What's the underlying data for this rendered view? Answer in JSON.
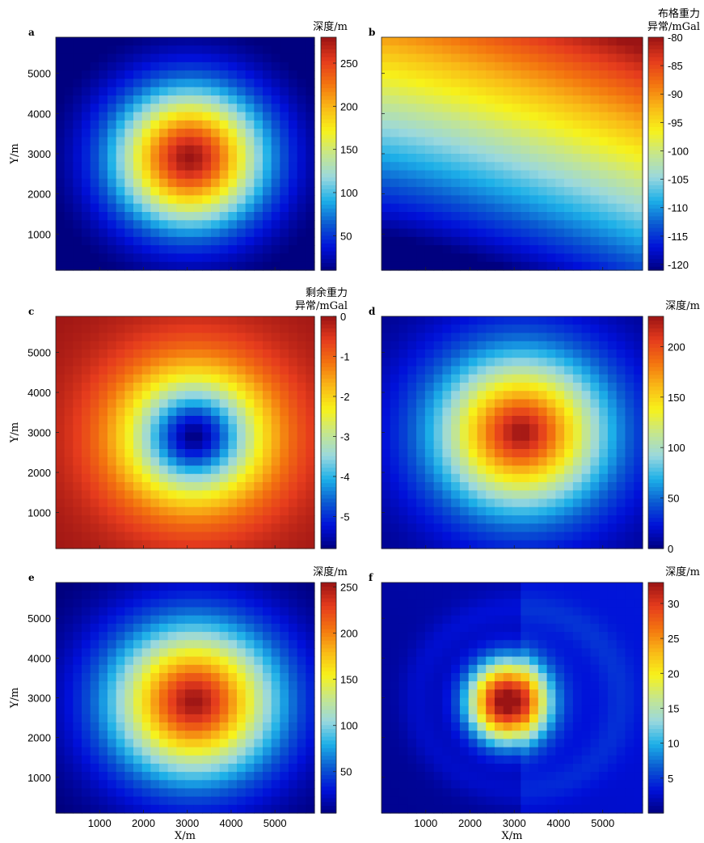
{
  "chart_data": [
    {
      "panel": "a",
      "type": "heatmap",
      "field": {
        "kind": "radial",
        "cx": 3050,
        "cy": 2900,
        "max": 280,
        "falloff": 2600,
        "shape": 1.8,
        "offset": 10
      },
      "xlim": [
        0,
        5900
      ],
      "ylim": [
        100,
        5900
      ],
      "x_ticks": [],
      "y_ticks": [
        1000,
        2000,
        3000,
        4000,
        5000
      ],
      "xlabel": "",
      "ylabel": "Y/m",
      "colorbar": {
        "title": [
          "深度/m"
        ],
        "min": 10,
        "max": 280,
        "ticks": [
          50,
          100,
          150,
          200,
          250
        ]
      }
    },
    {
      "panel": "b",
      "type": "heatmap",
      "field": {
        "kind": "curved_gradient",
        "top": -80,
        "bottom": -121
      },
      "xlim": [
        0,
        5900
      ],
      "ylim": [
        100,
        5900
      ],
      "x_ticks": [],
      "y_ticks": [],
      "xlabel": "",
      "ylabel": "",
      "colorbar": {
        "title": [
          "布格重力",
          "异常/mGal"
        ],
        "min": -121,
        "max": -80,
        "ticks": [
          -120,
          -115,
          -110,
          -105,
          -100,
          -95,
          -90,
          -85,
          -80
        ]
      }
    },
    {
      "panel": "c",
      "type": "heatmap",
      "field": {
        "kind": "radial_inverse",
        "cx": 3150,
        "cy": 2900,
        "min": -5.8,
        "max": 0,
        "falloff": 3300,
        "shape": 1.6
      },
      "xlim": [
        0,
        5900
      ],
      "ylim": [
        100,
        5900
      ],
      "x_ticks": [],
      "y_ticks": [
        1000,
        2000,
        3000,
        4000,
        5000
      ],
      "xlabel": "",
      "ylabel": "Y/m",
      "colorbar": {
        "title": [
          "剩余重力",
          "异常/mGal"
        ],
        "min": -5.8,
        "max": 0,
        "ticks": [
          -5,
          -4,
          -3,
          -2,
          -1,
          0
        ]
      }
    },
    {
      "panel": "d",
      "type": "heatmap",
      "field": {
        "kind": "radial",
        "cx": 3150,
        "cy": 3000,
        "max": 230,
        "falloff": 3000,
        "shape": 1.6,
        "offset": 0
      },
      "xlim": [
        0,
        5900
      ],
      "ylim": [
        100,
        5900
      ],
      "x_ticks": [],
      "y_ticks": [],
      "xlabel": "",
      "ylabel": "",
      "colorbar": {
        "title": [
          "深度/m"
        ],
        "min": 0,
        "max": 230,
        "ticks": [
          0,
          50,
          100,
          150,
          200
        ]
      }
    },
    {
      "panel": "e",
      "type": "heatmap",
      "field": {
        "kind": "radial",
        "cx": 3150,
        "cy": 2900,
        "max": 255,
        "falloff": 2900,
        "shape": 1.7,
        "offset": 5
      },
      "xlim": [
        0,
        5900
      ],
      "ylim": [
        100,
        5900
      ],
      "x_ticks": [
        1000,
        2000,
        3000,
        4000,
        5000
      ],
      "y_ticks": [
        1000,
        2000,
        3000,
        4000,
        5000
      ],
      "xlabel": "X/m",
      "ylabel": "Y/m",
      "colorbar": {
        "title": [
          "深度/m"
        ],
        "min": 5,
        "max": 255,
        "ticks": [
          50,
          100,
          150,
          200,
          250
        ]
      }
    },
    {
      "panel": "f",
      "type": "heatmap",
      "field": {
        "kind": "residual",
        "cx": 2850,
        "cy": 2900,
        "max": 33,
        "falloff": 1000,
        "shape": 2.2
      },
      "xlim": [
        0,
        5900
      ],
      "ylim": [
        100,
        5900
      ],
      "x_ticks": [
        1000,
        2000,
        3000,
        4000,
        5000
      ],
      "y_ticks": [],
      "xlabel": "X/m",
      "ylabel": "",
      "colorbar": {
        "title": [
          "深度/m"
        ],
        "min": 0,
        "max": 33,
        "ticks": [
          5,
          10,
          15,
          20,
          25,
          30
        ]
      }
    }
  ],
  "colormap": [
    "#00007f",
    "#0010d9",
    "#0a5ad1",
    "#1db0e8",
    "#9ad8de",
    "#c6e68c",
    "#f7f21a",
    "#f9b917",
    "#f3740f",
    "#e53b1d",
    "#9b1414"
  ]
}
